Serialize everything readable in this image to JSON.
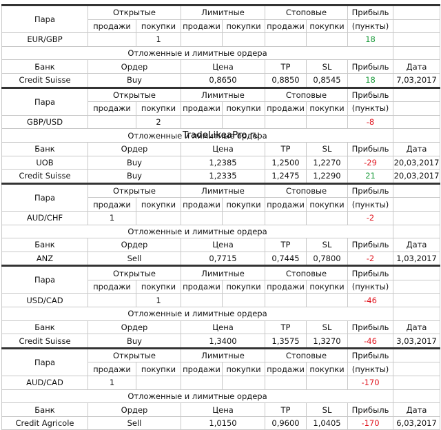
{
  "blocks": [
    {
      "header": {
        "pair": "Пара",
        "open": "Открытые",
        "limit": "Лимитные",
        "stop": "Стоповые",
        "profit": "Прибыль",
        "sub": [
          "продажи",
          "покупки",
          "продажи",
          "покупки",
          "продажи",
          "покупки"
        ],
        "units": "(пункты)"
      },
      "pair": "EUR/GBP",
      "positions": [
        null,
        "1",
        null,
        null,
        null,
        null
      ],
      "profit": "18",
      "section": "Отложенные и лимитные ордера",
      "orders_header": [
        "Банк",
        "Ордер",
        "Цена",
        "TP",
        "SL",
        "Прибыль",
        "Дата"
      ],
      "orders": [
        [
          "Credit Suisse",
          "Buy",
          "0,8650",
          "0,8850",
          "0,8545",
          "18",
          "7,03,2017"
        ]
      ]
    },
    {
      "header": {
        "pair": "Пара",
        "open": "Открытые",
        "limit": "Лимитные",
        "stop": "Стоповые",
        "profit": "Прибыль",
        "sub": [
          "продажи",
          "покупки",
          "продажи",
          "покупки",
          "продажи",
          "покупки"
        ],
        "units": "(пункты)"
      },
      "pair": "GBP/USD",
      "positions": [
        null,
        "2",
        null,
        null,
        null,
        null
      ],
      "profit": "-8",
      "section": "Отложенные и лимитные ордера",
      "watermark": "TradeLikeaPro.ru",
      "orders_header": [
        "Банк",
        "Ордер",
        "Цена",
        "TP",
        "SL",
        "Прибыль",
        "Дата"
      ],
      "orders": [
        [
          "UOB",
          "Buy",
          "1,2385",
          "1,2500",
          "1,2270",
          "-29",
          "20,03,2017"
        ],
        [
          "Credit Suisse",
          "Buy",
          "1,2335",
          "1,2475",
          "1,2290",
          "21",
          "20,03,2017"
        ]
      ]
    },
    {
      "header": {
        "pair": "Пара",
        "open": "Открытые",
        "limit": "Лимитные",
        "stop": "Стоповые",
        "profit": "Прибыль",
        "sub": [
          "продажи",
          "покупки",
          "продажи",
          "покупки",
          "продажи",
          "покупки"
        ],
        "units": "(пункты)"
      },
      "pair": "AUD/CHF",
      "positions": [
        "1",
        null,
        null,
        null,
        null,
        null
      ],
      "profit": "-2",
      "section": "Отложенные и лимитные ордера",
      "orders_header": [
        "Банк",
        "Ордер",
        "Цена",
        "TP",
        "SL",
        "Прибыль",
        "Дата"
      ],
      "orders": [
        [
          "ANZ",
          "Sell",
          "0,7715",
          "0,7445",
          "0,7800",
          "-2",
          "1,03,2017"
        ]
      ]
    },
    {
      "header": {
        "pair": "Пара",
        "open": "Открытые",
        "limit": "Лимитные",
        "stop": "Стоповые",
        "profit": "Прибыль",
        "sub": [
          "продажи",
          "покупки",
          "продажи",
          "покупки",
          "продажи",
          "покупки"
        ],
        "units": "(пункты)"
      },
      "pair": "USD/CAD",
      "positions": [
        null,
        "1",
        null,
        null,
        null,
        null
      ],
      "profit": "-46",
      "section": "Отложенные и лимитные ордера",
      "orders_header": [
        "Банк",
        "Ордер",
        "Цена",
        "TP",
        "SL",
        "Прибыль",
        "Дата"
      ],
      "orders": [
        [
          "Credit Suisse",
          "Buy",
          "1,3400",
          "1,3575",
          "1,3270",
          "-46",
          "3,03,2017"
        ]
      ]
    },
    {
      "header": {
        "pair": "Пара",
        "open": "Открытые",
        "limit": "Лимитные",
        "stop": "Стоповые",
        "profit": "Прибыль",
        "sub": [
          "продажи",
          "покупки",
          "продажи",
          "покупки",
          "продажи",
          "покупки"
        ],
        "units": "(пункты)"
      },
      "pair": "AUD/CAD",
      "positions": [
        "1",
        null,
        null,
        null,
        null,
        null
      ],
      "profit": "-170",
      "section": "Отложенные и лимитные ордера",
      "orders_header": [
        "Банк",
        "Ордер",
        "Цена",
        "TP",
        "SL",
        "Прибыль",
        "Дата"
      ],
      "orders": [
        [
          "Credit Agricole",
          "Sell",
          "1,0150",
          "0,9600",
          "1,0405",
          "-170",
          "6,03,2017"
        ]
      ]
    }
  ]
}
